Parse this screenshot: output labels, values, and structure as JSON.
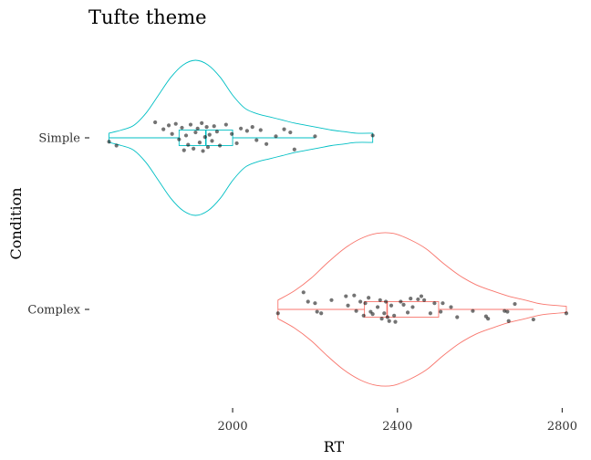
{
  "chart_data": {
    "type": "violin",
    "title": "Tufte theme",
    "xlabel": "RT",
    "ylabel": "Condition",
    "xlim": [
      1670,
      2830
    ],
    "x_ticks": [
      2000,
      2400,
      2800
    ],
    "x_tick_labels": [
      "2000",
      "2400",
      "2800"
    ],
    "categories": [
      "Complex",
      "Simple"
    ],
    "grid": false,
    "legend": "none",
    "series": [
      {
        "category": "Simple",
        "color": "#00BFC4",
        "box": {
          "min": 1700,
          "q1": 1870,
          "median": 1935,
          "q3": 2000,
          "max": 2200
        },
        "violin_extent": [
          1700,
          2340
        ],
        "violin_density": [
          [
            1700,
            0.06
          ],
          [
            1730,
            0.1
          ],
          [
            1760,
            0.16
          ],
          [
            1790,
            0.32
          ],
          [
            1820,
            0.55
          ],
          [
            1850,
            0.78
          ],
          [
            1880,
            0.94
          ],
          [
            1910,
            1.0
          ],
          [
            1940,
            0.94
          ],
          [
            1970,
            0.78
          ],
          [
            2000,
            0.55
          ],
          [
            2030,
            0.38
          ],
          [
            2060,
            0.31
          ],
          [
            2090,
            0.27
          ],
          [
            2120,
            0.23
          ],
          [
            2150,
            0.19
          ],
          [
            2180,
            0.16
          ],
          [
            2210,
            0.13
          ],
          [
            2240,
            0.1
          ],
          [
            2270,
            0.08
          ],
          [
            2300,
            0.06
          ],
          [
            2340,
            0.06
          ]
        ],
        "points": [
          [
            1700,
            -0.05
          ],
          [
            1718,
            -0.1
          ],
          [
            1812,
            0.2
          ],
          [
            1832,
            0.11
          ],
          [
            1845,
            0.16
          ],
          [
            1853,
            0.05
          ],
          [
            1862,
            0.18
          ],
          [
            1870,
            -0.02
          ],
          [
            1877,
            0.13
          ],
          [
            1882,
            -0.16
          ],
          [
            1887,
            0.03
          ],
          [
            1892,
            -0.09
          ],
          [
            1898,
            0.17
          ],
          [
            1905,
            -0.14
          ],
          [
            1910,
            0.07
          ],
          [
            1915,
            0.12
          ],
          [
            1920,
            -0.06
          ],
          [
            1925,
            0.19
          ],
          [
            1928,
            -0.17
          ],
          [
            1933,
            0.01
          ],
          [
            1937,
            0.14
          ],
          [
            1940,
            -0.12
          ],
          [
            1944,
            0.04
          ],
          [
            1950,
            -0.04
          ],
          [
            1955,
            0.15
          ],
          [
            1962,
            0.08
          ],
          [
            1969,
            -0.1
          ],
          [
            1984,
            0.17
          ],
          [
            1998,
            0.05
          ],
          [
            2010,
            -0.07
          ],
          [
            2020,
            0.12
          ],
          [
            2035,
            0.09
          ],
          [
            2048,
            0.14
          ],
          [
            2058,
            -0.03
          ],
          [
            2068,
            0.1
          ],
          [
            2082,
            -0.08
          ],
          [
            2105,
            0.02
          ],
          [
            2125,
            0.11
          ],
          [
            2140,
            0.07
          ],
          [
            2150,
            -0.15
          ],
          [
            2200,
            0.02
          ],
          [
            2340,
            0.03
          ]
        ]
      },
      {
        "category": "Complex",
        "color": "#F8766D",
        "box": {
          "min": 2110,
          "q1": 2320,
          "median": 2375,
          "q3": 2500,
          "max": 2730
        },
        "violin_extent": [
          2110,
          2810
        ],
        "violin_density": [
          [
            2110,
            0.12
          ],
          [
            2150,
            0.24
          ],
          [
            2190,
            0.4
          ],
          [
            2230,
            0.6
          ],
          [
            2270,
            0.78
          ],
          [
            2310,
            0.91
          ],
          [
            2350,
            0.98
          ],
          [
            2390,
            0.98
          ],
          [
            2430,
            0.9
          ],
          [
            2470,
            0.78
          ],
          [
            2510,
            0.6
          ],
          [
            2550,
            0.44
          ],
          [
            2590,
            0.32
          ],
          [
            2630,
            0.24
          ],
          [
            2670,
            0.17
          ],
          [
            2710,
            0.12
          ],
          [
            2750,
            0.07
          ],
          [
            2810,
            0.04
          ]
        ],
        "points": [
          [
            2110,
            -0.05
          ],
          [
            2172,
            0.22
          ],
          [
            2183,
            0.1
          ],
          [
            2200,
            0.08
          ],
          [
            2205,
            -0.03
          ],
          [
            2215,
            -0.05
          ],
          [
            2240,
            0.12
          ],
          [
            2275,
            0.17
          ],
          [
            2280,
            0.05
          ],
          [
            2295,
            0.18
          ],
          [
            2300,
            -0.02
          ],
          [
            2310,
            0.1
          ],
          [
            2318,
            -0.08
          ],
          [
            2322,
            0.08
          ],
          [
            2330,
            0.15
          ],
          [
            2335,
            -0.03
          ],
          [
            2340,
            -0.06
          ],
          [
            2352,
            0.03
          ],
          [
            2358,
            0.12
          ],
          [
            2362,
            -0.12
          ],
          [
            2368,
            -0.05
          ],
          [
            2372,
            0.1
          ],
          [
            2376,
            -0.1
          ],
          [
            2380,
            -0.15
          ],
          [
            2385,
            0.05
          ],
          [
            2392,
            -0.08
          ],
          [
            2395,
            -0.16
          ],
          [
            2408,
            0.1
          ],
          [
            2415,
            0.06
          ],
          [
            2425,
            -0.04
          ],
          [
            2432,
            0.14
          ],
          [
            2437,
            0.03
          ],
          [
            2450,
            0.13
          ],
          [
            2458,
            0.17
          ],
          [
            2465,
            0.12
          ],
          [
            2480,
            -0.05
          ],
          [
            2490,
            0.08
          ],
          [
            2505,
            -0.03
          ],
          [
            2510,
            0.08
          ],
          [
            2530,
            0.03
          ],
          [
            2545,
            -0.1
          ],
          [
            2583,
            -0.02
          ],
          [
            2615,
            -0.09
          ],
          [
            2620,
            -0.12
          ],
          [
            2660,
            -0.02
          ],
          [
            2667,
            -0.03
          ],
          [
            2670,
            -0.15
          ],
          [
            2685,
            0.07
          ],
          [
            2730,
            -0.13
          ],
          [
            2810,
            -0.05
          ]
        ]
      }
    ]
  }
}
